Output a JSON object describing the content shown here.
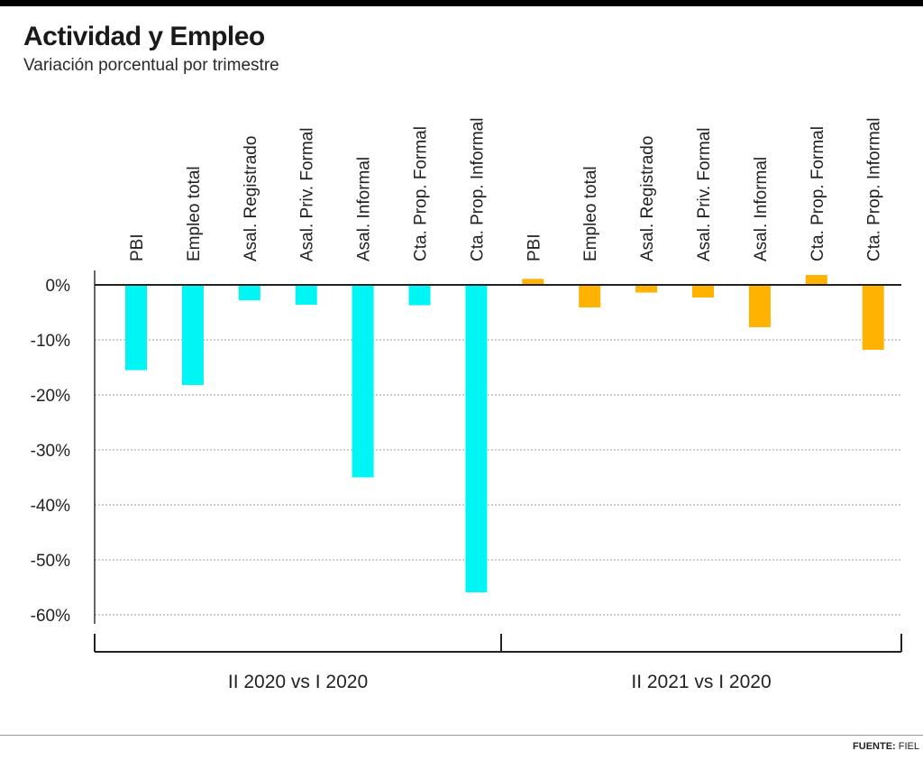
{
  "title": "Actividad y Empleo",
  "subtitle": "Variación porcentual por trimestre",
  "source": {
    "label": "FUENTE:",
    "text": "FIEL"
  },
  "chart_data": {
    "type": "bar",
    "ylim": [
      -60,
      0
    ],
    "yticks": [
      0,
      -10,
      -20,
      -30,
      -40,
      -50,
      -60
    ],
    "ytick_labels": [
      "0%",
      "-10%",
      "-20%",
      "-30%",
      "-40%",
      "-50%",
      "-60%"
    ],
    "grid": true,
    "legend": "none",
    "groups": [
      {
        "label": "II 2020 vs I 2020",
        "color": "#00f5f5",
        "categories": [
          "PBI",
          "Empleo total",
          "Asal. Registrado",
          "Asal. Priv. Formal",
          "Asal. Informal",
          "Cta. Prop. Formal",
          "Cta. Prop. Informal"
        ],
        "values": [
          -15.5,
          -18.2,
          -2.8,
          -3.6,
          -35,
          -3.7,
          -55.9
        ]
      },
      {
        "label": "II 2021 vs I 2020",
        "color": "#ffb300",
        "categories": [
          "PBI",
          "Empleo total",
          "Asal. Registrado",
          "Asal. Priv. Formal",
          "Asal. Informal",
          "Cta. Prop. Formal",
          "Cta. Prop. Informal"
        ],
        "values": [
          1.1,
          -4.1,
          -1.4,
          -2.3,
          -7.7,
          1.8,
          -11.8
        ]
      }
    ]
  }
}
